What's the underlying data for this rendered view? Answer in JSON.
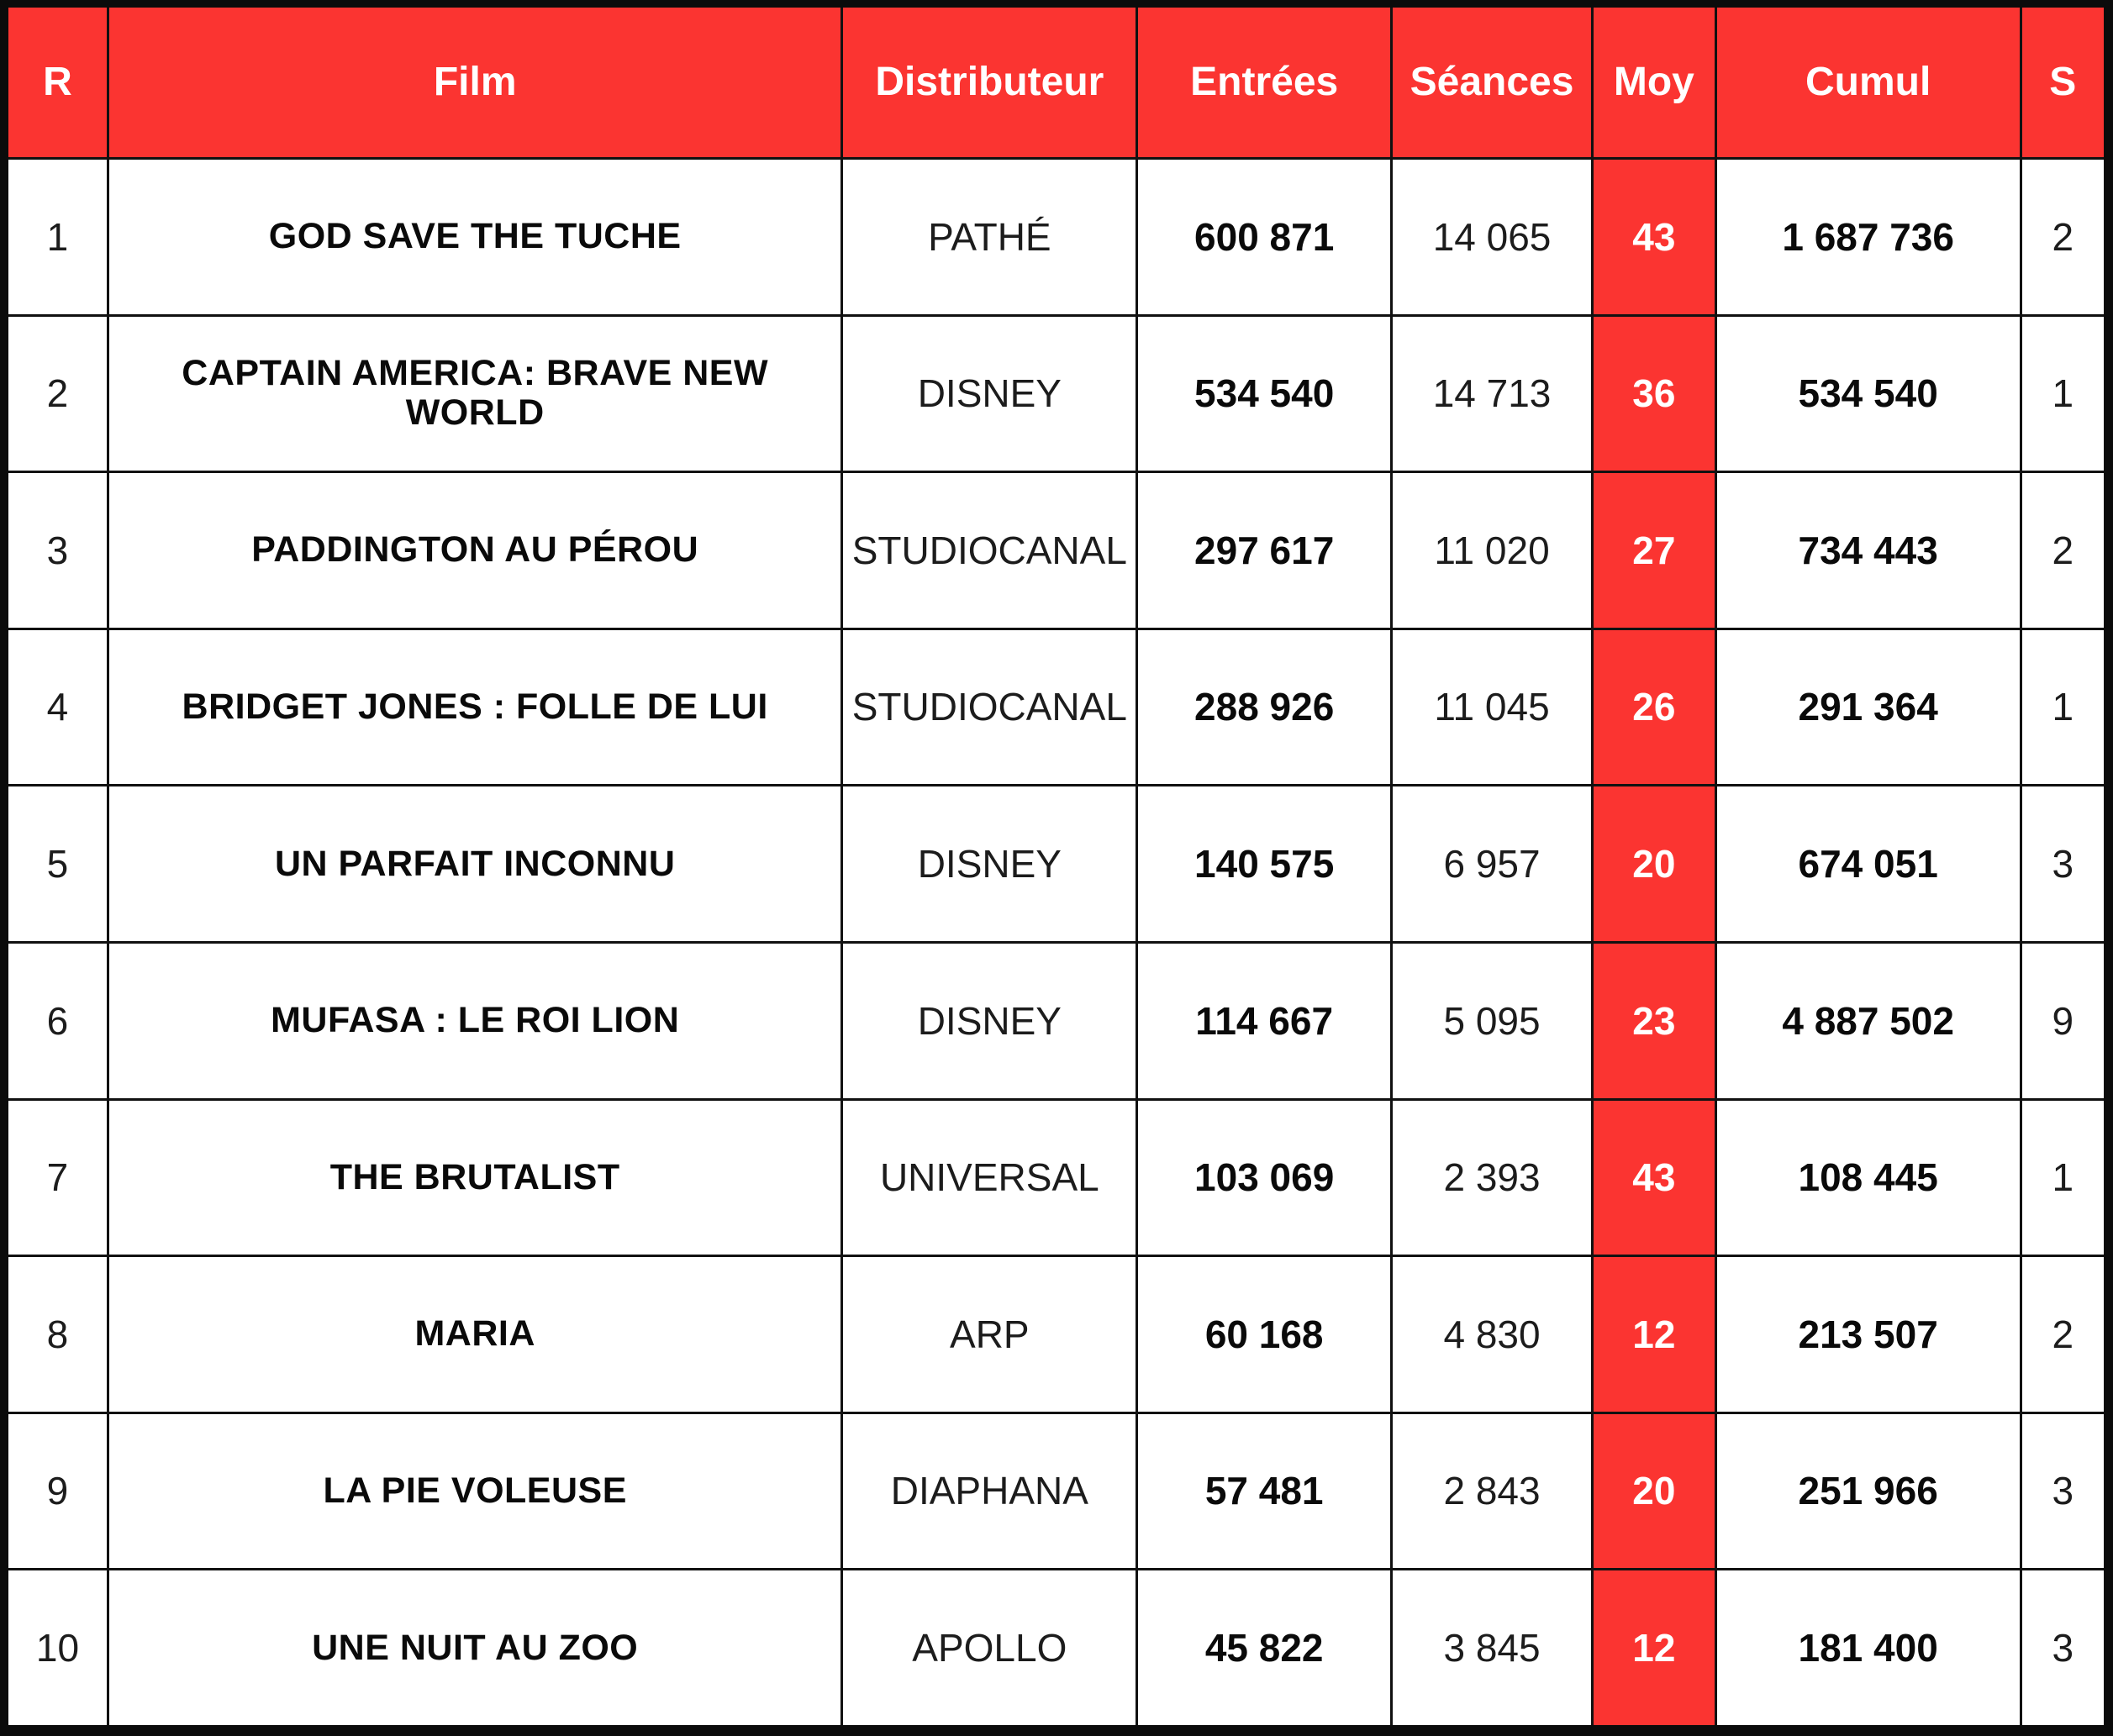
{
  "styles": {
    "accent_red": "#FB3431",
    "gridline_black": "#111111",
    "header_text_white": "#FFFFFF",
    "body_text_black": "#141414"
  },
  "chart_data": {
    "type": "table",
    "columns": [
      "R",
      "Film",
      "Distributeur",
      "Entrées",
      "Séances",
      "Moy",
      "Cumul",
      "S"
    ],
    "rows": [
      [
        "1",
        "GOD SAVE THE TUCHE",
        "PATHÉ",
        "600 871",
        "14 065",
        "43",
        "1 687 736",
        "2"
      ],
      [
        "2",
        "CAPTAIN AMERICA: BRAVE NEW WORLD",
        "DISNEY",
        "534 540",
        "14 713",
        "36",
        "534 540",
        "1"
      ],
      [
        "3",
        "PADDINGTON AU PÉROU",
        "STUDIOCANAL",
        "297 617",
        "11 020",
        "27",
        "734 443",
        "2"
      ],
      [
        "4",
        "BRIDGET JONES : FOLLE DE LUI",
        "STUDIOCANAL",
        "288 926",
        "11 045",
        "26",
        "291 364",
        "1"
      ],
      [
        "5",
        "UN PARFAIT INCONNU",
        "DISNEY",
        "140 575",
        "6 957",
        "20",
        "674 051",
        "3"
      ],
      [
        "6",
        "MUFASA : LE ROI LION",
        "DISNEY",
        "114 667",
        "5 095",
        "23",
        "4 887 502",
        "9"
      ],
      [
        "7",
        "THE BRUTALIST",
        "UNIVERSAL",
        "103 069",
        "2 393",
        "43",
        "108 445",
        "1"
      ],
      [
        "8",
        "MARIA",
        "ARP",
        "60 168",
        "4 830",
        "12",
        "213 507",
        "2"
      ],
      [
        "9",
        "LA PIE VOLEUSE",
        "DIAPHANA",
        "57 481",
        "2 843",
        "20",
        "251 966",
        "3"
      ],
      [
        "10",
        "UNE NUIT AU ZOO",
        "APOLLO",
        "45 822",
        "3 845",
        "12",
        "181 400",
        "3"
      ]
    ]
  }
}
